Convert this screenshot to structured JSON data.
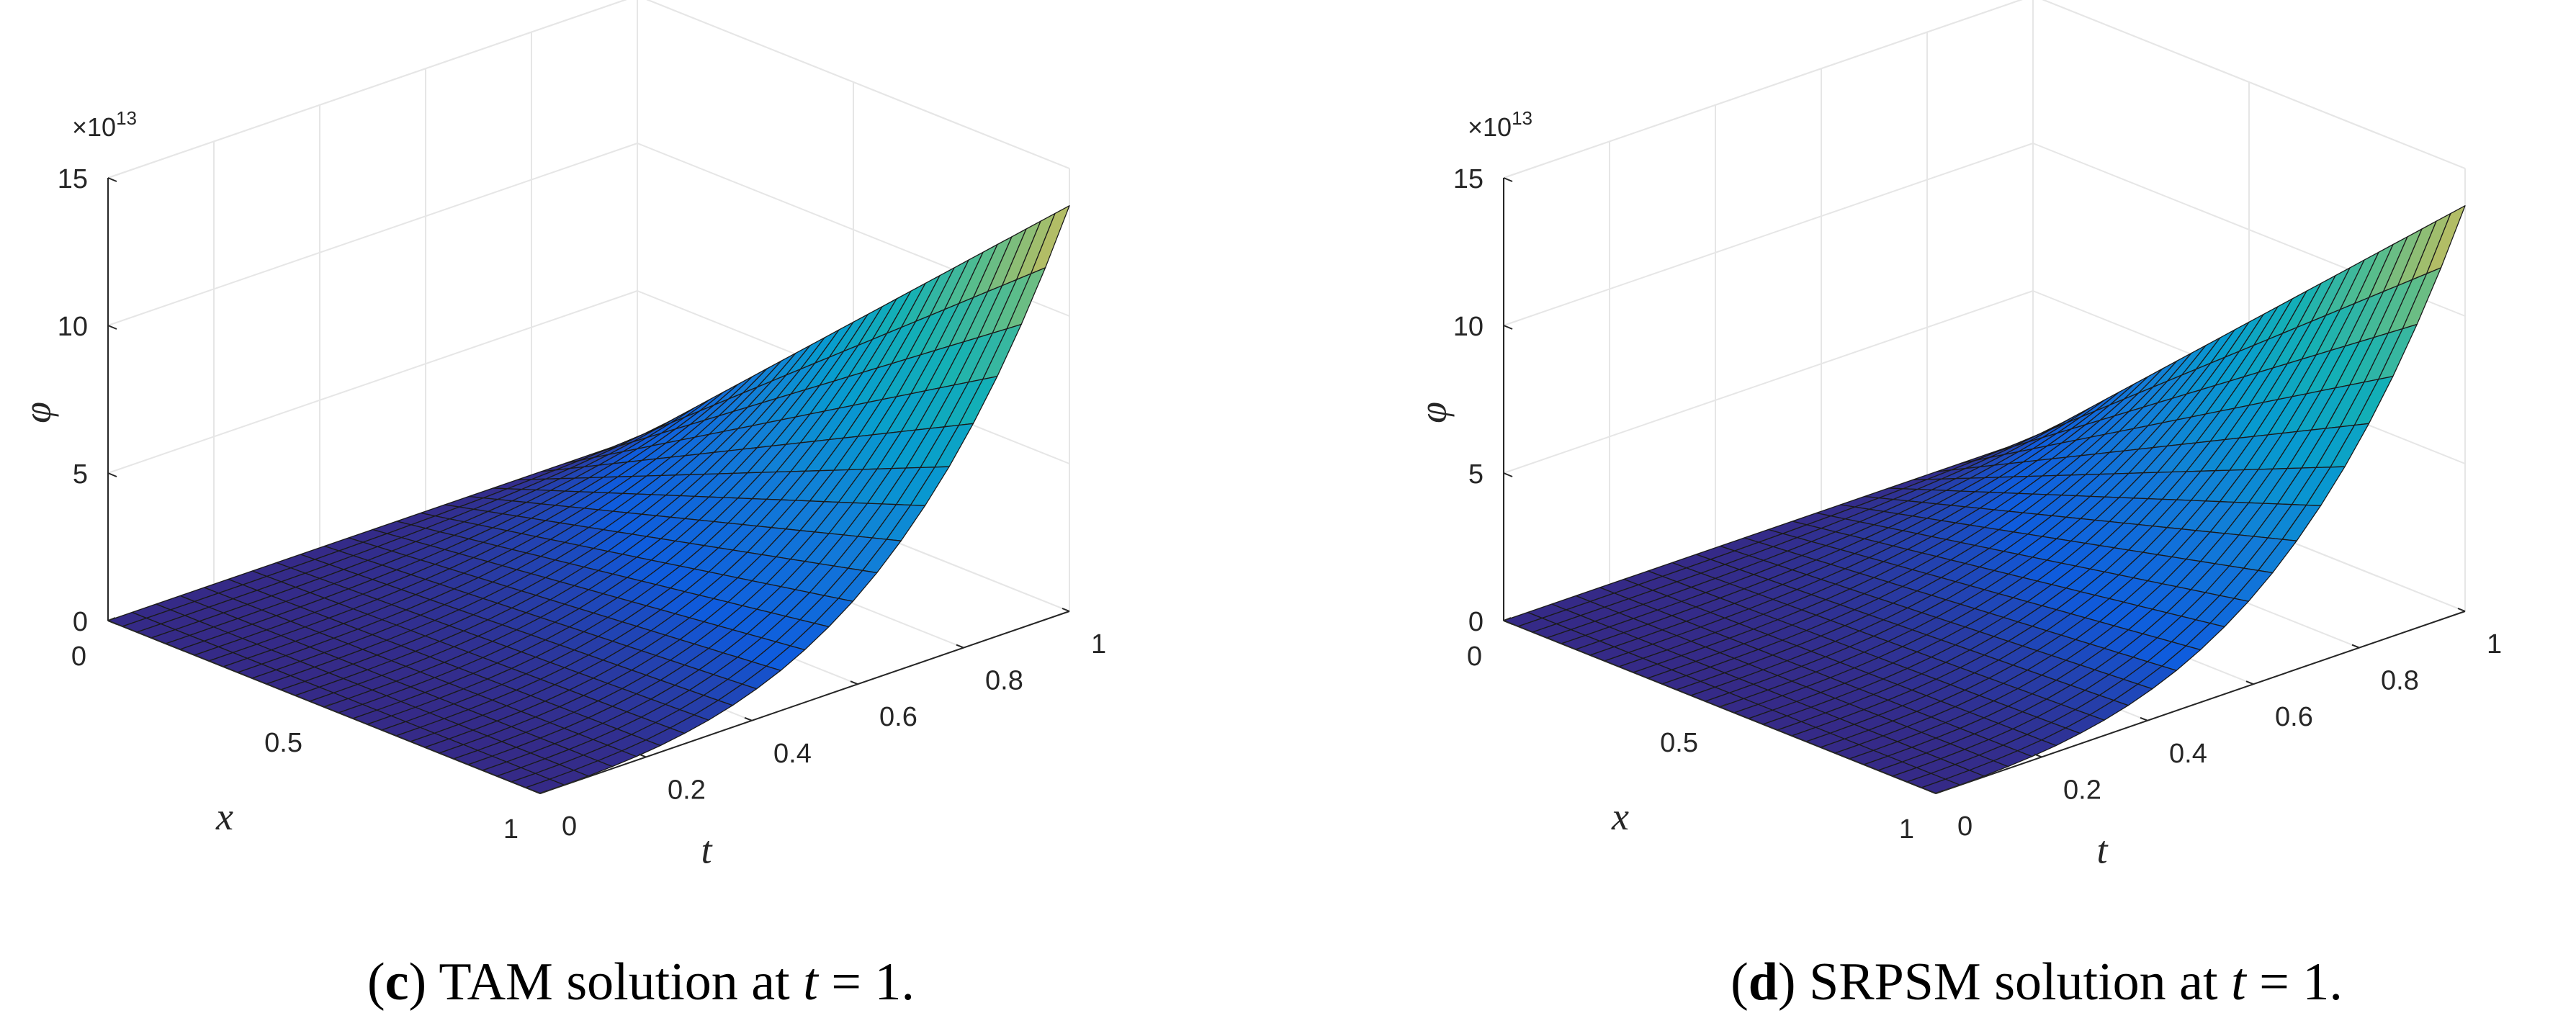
{
  "chart_data": [
    {
      "type": "surface",
      "panel": "c",
      "caption_tag": "c",
      "caption_text": "TAM solution at",
      "caption_var": "t",
      "caption_value": "= 1.",
      "xlabel": "x",
      "ylabel": "t",
      "zlabel": "φ",
      "x_ticks": [
        "0",
        "0.5",
        "1"
      ],
      "t_ticks": [
        "0",
        "0.2",
        "0.4",
        "0.6",
        "0.8",
        "1"
      ],
      "z_ticks": [
        "0",
        "5",
        "10",
        "15"
      ],
      "z_multiplier": "×10",
      "z_multiplier_exp": "13",
      "xlim": [
        0,
        1
      ],
      "tlim": [
        0,
        1
      ],
      "zlim": [
        0,
        15
      ],
      "z_scale": 10000000000000.0,
      "phi_at_x1": [
        0.0,
        0.008,
        0.03,
        0.07,
        0.13,
        0.22,
        0.35,
        0.52,
        0.74,
        1.02,
        1.36,
        1.78,
        2.28,
        2.86,
        3.55,
        4.35,
        5.26,
        6.3,
        7.48,
        8.8,
        10.28,
        11.92,
        13.74
      ],
      "grid": true
    },
    {
      "type": "surface",
      "panel": "d",
      "caption_tag": "d",
      "caption_text": "SRPSM solution at",
      "caption_var": "t",
      "caption_value": "= 1.",
      "xlabel": "x",
      "ylabel": "t",
      "zlabel": "φ",
      "x_ticks": [
        "0",
        "0.5",
        "1"
      ],
      "t_ticks": [
        "0",
        "0.2",
        "0.4",
        "0.6",
        "0.8",
        "1"
      ],
      "z_ticks": [
        "0",
        "5",
        "10",
        "15"
      ],
      "z_multiplier": "×10",
      "z_multiplier_exp": "13",
      "xlim": [
        0,
        1
      ],
      "tlim": [
        0,
        1
      ],
      "zlim": [
        0,
        15
      ],
      "z_scale": 10000000000000.0,
      "phi_at_x1": [
        0.0,
        0.008,
        0.03,
        0.07,
        0.13,
        0.22,
        0.35,
        0.52,
        0.74,
        1.02,
        1.36,
        1.78,
        2.28,
        2.86,
        3.55,
        4.35,
        5.26,
        6.3,
        7.48,
        8.8,
        10.28,
        11.92,
        13.74
      ],
      "grid": true
    }
  ]
}
